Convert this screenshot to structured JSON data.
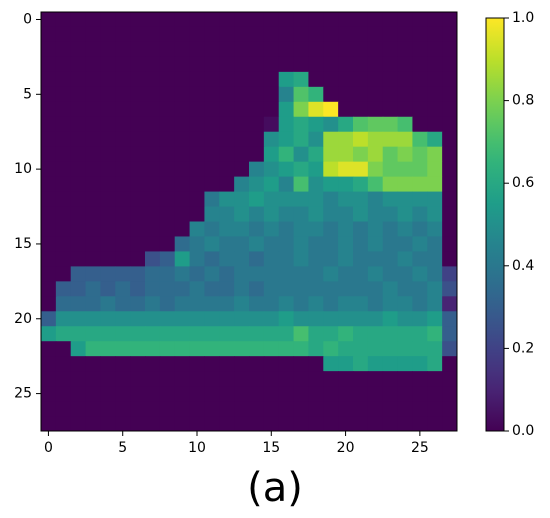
{
  "chart_data": {
    "type": "heatmap",
    "colormap": "viridis",
    "caption": "(a)",
    "xlim": [
      -0.5,
      27.5
    ],
    "ylim": [
      27.5,
      -0.5
    ],
    "clim": [
      0,
      1
    ],
    "xticks": [
      0,
      5,
      10,
      15,
      20,
      25
    ],
    "yticks": [
      0,
      5,
      10,
      15,
      20,
      25
    ],
    "colorbar_ticks": [
      {
        "value": 0,
        "label": "0.0"
      },
      {
        "value": 0.2,
        "label": "0.2"
      },
      {
        "value": 0.4,
        "label": "0.4"
      },
      {
        "value": 0.6,
        "label": "0.6"
      },
      {
        "value": 0.8,
        "label": "0.8"
      },
      {
        "value": 1,
        "label": "1.0"
      }
    ],
    "values": [
      [
        0,
        0,
        0,
        0,
        0,
        0,
        0,
        0,
        0,
        0,
        0,
        0,
        0,
        0,
        0,
        0,
        0,
        0,
        0,
        0,
        0,
        0,
        0,
        0,
        0,
        0,
        0,
        0
      ],
      [
        0,
        0,
        0,
        0,
        0,
        0,
        0,
        0,
        0,
        0,
        0,
        0,
        0,
        0,
        0,
        0,
        0,
        0,
        0,
        0,
        0,
        0,
        0,
        0,
        0,
        0,
        0,
        0
      ],
      [
        0,
        0,
        0,
        0,
        0,
        0,
        0,
        0,
        0,
        0,
        0,
        0,
        0,
        0,
        0,
        0,
        0,
        0,
        0,
        0,
        0,
        0,
        0,
        0,
        0,
        0,
        0,
        0
      ],
      [
        0,
        0,
        0,
        0,
        0,
        0,
        0,
        0,
        0,
        0,
        0,
        0,
        0,
        0,
        0,
        0,
        0,
        0,
        0,
        0,
        0,
        0,
        0,
        0,
        0,
        0,
        0,
        0
      ],
      [
        0,
        0,
        0,
        0,
        0,
        0,
        0,
        0,
        0,
        0,
        0,
        0,
        0,
        0,
        0,
        0,
        0.55,
        0.6,
        0,
        0,
        0,
        0,
        0,
        0,
        0,
        0,
        0,
        0
      ],
      [
        0,
        0,
        0,
        0,
        0,
        0,
        0,
        0,
        0,
        0,
        0,
        0,
        0,
        0,
        0,
        0,
        0.45,
        0.72,
        0.65,
        0,
        0,
        0,
        0,
        0,
        0,
        0,
        0,
        0
      ],
      [
        0,
        0,
        0,
        0,
        0,
        0,
        0,
        0,
        0,
        0,
        0,
        0,
        0,
        0,
        0,
        0,
        0.55,
        0.8,
        0.95,
        1.0,
        0,
        0,
        0,
        0,
        0,
        0,
        0,
        0
      ],
      [
        0,
        0,
        0,
        0,
        0,
        0,
        0,
        0,
        0,
        0,
        0,
        0,
        0,
        0,
        0,
        0.03,
        0.55,
        0.6,
        0.55,
        0.5,
        0.6,
        0.72,
        0.75,
        0.75,
        0.7,
        0,
        0,
        0
      ],
      [
        0,
        0,
        0,
        0,
        0,
        0,
        0,
        0,
        0,
        0,
        0,
        0,
        0,
        0,
        0,
        0.5,
        0.55,
        0.6,
        0.5,
        0.85,
        0.85,
        0.9,
        0.85,
        0.85,
        0.85,
        0.7,
        0.6,
        0
      ],
      [
        0,
        0,
        0,
        0,
        0,
        0,
        0,
        0,
        0,
        0,
        0,
        0,
        0,
        0,
        0,
        0.55,
        0.65,
        0.5,
        0.6,
        0.85,
        0.85,
        0.8,
        0.85,
        0.75,
        0.8,
        0.75,
        0.8,
        0
      ],
      [
        0,
        0,
        0,
        0,
        0,
        0,
        0,
        0,
        0,
        0,
        0,
        0,
        0,
        0,
        0.45,
        0.5,
        0.55,
        0.6,
        0.55,
        0.9,
        0.95,
        0.95,
        0.8,
        0.75,
        0.75,
        0.75,
        0.8,
        0
      ],
      [
        0,
        0,
        0,
        0,
        0,
        0,
        0,
        0,
        0,
        0,
        0,
        0,
        0,
        0.45,
        0.5,
        0.55,
        0.45,
        0.7,
        0.5,
        0.55,
        0.55,
        0.6,
        0.7,
        0.8,
        0.8,
        0.8,
        0.8,
        0
      ],
      [
        0,
        0,
        0,
        0,
        0,
        0,
        0,
        0,
        0,
        0,
        0,
        0.4,
        0.5,
        0.5,
        0.55,
        0.5,
        0.5,
        0.5,
        0.5,
        0.45,
        0.5,
        0.5,
        0.45,
        0.5,
        0.5,
        0.5,
        0.5,
        0
      ],
      [
        0,
        0,
        0,
        0,
        0,
        0,
        0,
        0,
        0,
        0,
        0,
        0.45,
        0.45,
        0.5,
        0.45,
        0.5,
        0.45,
        0.45,
        0.5,
        0.45,
        0.45,
        0.5,
        0.45,
        0.45,
        0.5,
        0.45,
        0.5,
        0
      ],
      [
        0,
        0,
        0,
        0,
        0,
        0,
        0,
        0,
        0,
        0,
        0.45,
        0.4,
        0.45,
        0.45,
        0.4,
        0.45,
        0.4,
        0.45,
        0.45,
        0.4,
        0.45,
        0.4,
        0.45,
        0.4,
        0.45,
        0.4,
        0.45,
        0
      ],
      [
        0,
        0,
        0,
        0,
        0,
        0,
        0,
        0,
        0,
        0.35,
        0.4,
        0.45,
        0.4,
        0.4,
        0.45,
        0.4,
        0.4,
        0.45,
        0.4,
        0.4,
        0.45,
        0.4,
        0.45,
        0.4,
        0.4,
        0.45,
        0.4,
        0
      ],
      [
        0,
        0,
        0,
        0,
        0,
        0,
        0,
        0.25,
        0.3,
        0.55,
        0.4,
        0.35,
        0.4,
        0.4,
        0.35,
        0.4,
        0.4,
        0.45,
        0.4,
        0.4,
        0.45,
        0.4,
        0.4,
        0.4,
        0.45,
        0.4,
        0.4,
        0
      ],
      [
        0,
        0,
        0.3,
        0.3,
        0.3,
        0.3,
        0.3,
        0.35,
        0.35,
        0.4,
        0.35,
        0.4,
        0.35,
        0.4,
        0.4,
        0.4,
        0.4,
        0.4,
        0.4,
        0.45,
        0.4,
        0.4,
        0.45,
        0.4,
        0.4,
        0.45,
        0.4,
        0.2
      ],
      [
        0,
        0.3,
        0.3,
        0.35,
        0.3,
        0.35,
        0.3,
        0.35,
        0.35,
        0.35,
        0.4,
        0.35,
        0.35,
        0.4,
        0.35,
        0.4,
        0.4,
        0.4,
        0.4,
        0.4,
        0.4,
        0.4,
        0.4,
        0.45,
        0.4,
        0.4,
        0.45,
        0.25
      ],
      [
        0,
        0.35,
        0.35,
        0.35,
        0.4,
        0.35,
        0.35,
        0.4,
        0.35,
        0.4,
        0.4,
        0.4,
        0.4,
        0.45,
        0.4,
        0.4,
        0.45,
        0.4,
        0.45,
        0.4,
        0.45,
        0.45,
        0.4,
        0.45,
        0.45,
        0.4,
        0.45,
        0.1
      ],
      [
        0.3,
        0.5,
        0.5,
        0.5,
        0.5,
        0.5,
        0.5,
        0.5,
        0.5,
        0.5,
        0.5,
        0.5,
        0.5,
        0.5,
        0.5,
        0.5,
        0.55,
        0.5,
        0.5,
        0.5,
        0.5,
        0.5,
        0.5,
        0.55,
        0.5,
        0.5,
        0.55,
        0.3
      ],
      [
        0.55,
        0.6,
        0.6,
        0.6,
        0.6,
        0.6,
        0.6,
        0.6,
        0.6,
        0.6,
        0.6,
        0.6,
        0.6,
        0.6,
        0.6,
        0.6,
        0.6,
        0.7,
        0.6,
        0.6,
        0.65,
        0.6,
        0.6,
        0.6,
        0.6,
        0.6,
        0.65,
        0.3
      ],
      [
        0,
        0,
        0.55,
        0.65,
        0.65,
        0.65,
        0.65,
        0.65,
        0.65,
        0.65,
        0.65,
        0.65,
        0.65,
        0.65,
        0.65,
        0.65,
        0.65,
        0.65,
        0.6,
        0.65,
        0.6,
        0.6,
        0.6,
        0.6,
        0.6,
        0.6,
        0.6,
        0.25
      ],
      [
        0,
        0,
        0,
        0,
        0,
        0,
        0,
        0,
        0,
        0,
        0,
        0,
        0,
        0,
        0,
        0,
        0,
        0,
        0,
        0.55,
        0.55,
        0.6,
        0.55,
        0.55,
        0.55,
        0.55,
        0.6,
        0
      ],
      [
        0,
        0,
        0,
        0,
        0,
        0,
        0,
        0,
        0,
        0,
        0,
        0,
        0,
        0,
        0,
        0,
        0,
        0,
        0,
        0,
        0,
        0,
        0,
        0,
        0,
        0,
        0,
        0
      ],
      [
        0,
        0,
        0,
        0,
        0,
        0,
        0,
        0,
        0,
        0,
        0,
        0,
        0,
        0,
        0,
        0,
        0,
        0,
        0,
        0,
        0,
        0,
        0,
        0,
        0,
        0,
        0,
        0
      ],
      [
        0,
        0,
        0,
        0,
        0,
        0,
        0,
        0,
        0,
        0,
        0,
        0,
        0,
        0,
        0,
        0,
        0,
        0,
        0,
        0,
        0,
        0,
        0,
        0,
        0,
        0,
        0,
        0
      ],
      [
        0,
        0,
        0,
        0,
        0,
        0,
        0,
        0,
        0,
        0,
        0,
        0,
        0,
        0,
        0,
        0,
        0,
        0,
        0,
        0,
        0,
        0,
        0,
        0,
        0,
        0,
        0,
        0
      ]
    ]
  }
}
